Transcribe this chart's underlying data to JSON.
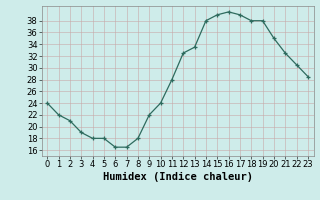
{
  "x": [
    0,
    1,
    2,
    3,
    4,
    5,
    6,
    7,
    8,
    9,
    10,
    11,
    12,
    13,
    14,
    15,
    16,
    17,
    18,
    19,
    20,
    21,
    22,
    23
  ],
  "y": [
    24,
    22,
    21,
    19,
    18,
    18,
    16.5,
    16.5,
    18,
    22,
    24,
    28,
    32.5,
    33.5,
    38,
    39,
    39.5,
    39,
    38,
    38,
    35,
    32.5,
    30.5,
    28.5
  ],
  "line_color": "#2e6b5e",
  "marker": "+",
  "marker_color": "#2e6b5e",
  "bg_color": "#ceecea",
  "grid_color_major": "#b8d8d4",
  "grid_color_minor": "#cde8e5",
  "axis_color": "#2e6b5e",
  "xlabel": "Humidex (Indice chaleur)",
  "ylim": [
    15,
    40
  ],
  "xlim": [
    -0.5,
    23.5
  ],
  "yticks": [
    16,
    18,
    20,
    22,
    24,
    26,
    28,
    30,
    32,
    34,
    36,
    38
  ],
  "xticks": [
    0,
    1,
    2,
    3,
    4,
    5,
    6,
    7,
    8,
    9,
    10,
    11,
    12,
    13,
    14,
    15,
    16,
    17,
    18,
    19,
    20,
    21,
    22,
    23
  ],
  "xlabel_fontsize": 7.5,
  "tick_fontsize": 6
}
